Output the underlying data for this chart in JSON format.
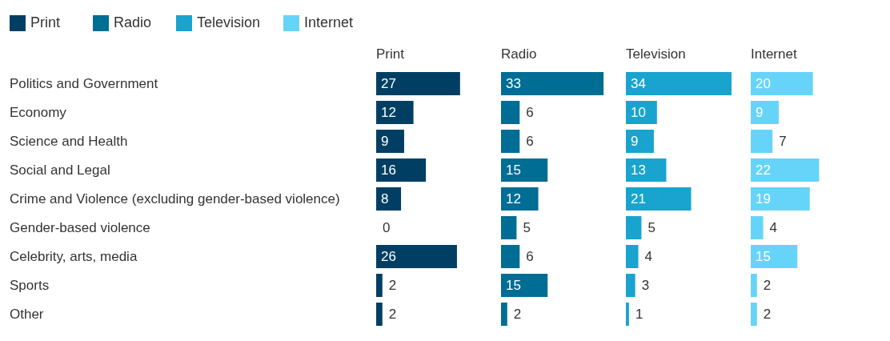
{
  "chart_data": [
    {
      "type": "bar",
      "orientation": "horizontal",
      "legend": "top left",
      "data_labels": true,
      "tick_labels": "y",
      "title": "Print",
      "categories": [
        "Politics and Government",
        "Economy",
        "Science and Health",
        "Social and Legal",
        "Crime and Violence (excluding gender-based violence)",
        "Gender-based violence",
        "Celebrity, arts, media",
        "Sports",
        "Other"
      ],
      "series": [
        {
          "name": "Print",
          "color": "#003f63",
          "values": [
            27,
            12,
            9,
            16,
            8,
            0,
            26,
            2,
            2
          ]
        }
      ]
    },
    {
      "type": "bar",
      "orientation": "horizontal",
      "legend": "top left",
      "data_labels": true,
      "tick_labels": false,
      "title": "Radio",
      "categories": [
        null,
        null,
        null,
        null,
        null,
        null,
        null,
        null,
        null
      ],
      "series": [
        {
          "name": "Radio",
          "color": "#006d94",
          "values": [
            33,
            6,
            6,
            15,
            12,
            5,
            6,
            15,
            2
          ]
        }
      ]
    },
    {
      "type": "bar",
      "orientation": "horizontal",
      "legend": "top left",
      "data_labels": true,
      "tick_labels": false,
      "title": "Television",
      "categories": [
        null,
        null,
        null,
        null,
        null,
        null,
        null,
        null,
        null
      ],
      "series": [
        {
          "name": "Television",
          "color": "#19a3cf",
          "values": [
            34,
            10,
            9,
            13,
            21,
            5,
            4,
            3,
            1
          ]
        }
      ]
    },
    {
      "type": "bar",
      "orientation": "horizontal",
      "legend": "top left",
      "data_labels": true,
      "tick_labels": false,
      "title": "Internet",
      "categories": [
        null,
        null,
        null,
        null,
        null,
        null,
        null,
        null,
        null
      ],
      "series": [
        {
          "name": "Internet",
          "color": "#66d4f9",
          "values": [
            20,
            9,
            7,
            22,
            19,
            4,
            15,
            2,
            2
          ]
        }
      ]
    }
  ]
}
